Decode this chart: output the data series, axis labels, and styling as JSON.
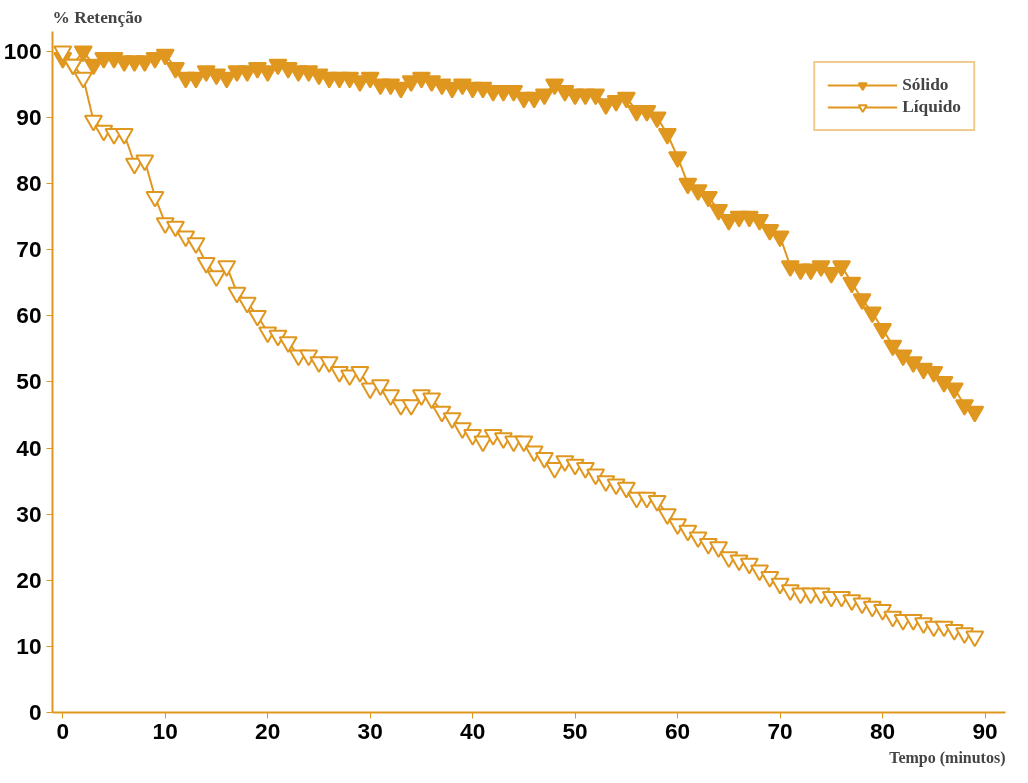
{
  "chart_data": {
    "type": "line",
    "xlabel": "Tempo (minutos)",
    "ylabel": "% Retenção",
    "x": [
      0,
      1,
      2,
      3,
      4,
      5,
      6,
      7,
      8,
      9,
      10,
      11,
      12,
      13,
      14,
      15,
      16,
      17,
      18,
      19,
      20,
      21,
      22,
      23,
      24,
      25,
      26,
      27,
      28,
      29,
      30,
      31,
      32,
      33,
      34,
      35,
      36,
      37,
      38,
      39,
      40,
      41,
      42,
      43,
      44,
      45,
      46,
      47,
      48,
      49,
      50,
      51,
      52,
      53,
      54,
      55,
      56,
      57,
      58,
      59,
      60,
      61,
      62,
      63,
      64,
      65,
      66,
      67,
      68,
      69,
      70,
      71,
      72,
      73,
      74,
      75,
      76,
      77,
      78,
      79,
      80,
      81,
      82,
      83,
      84,
      85,
      86,
      87,
      88,
      89
    ],
    "series": [
      {
        "name": "Sólido",
        "color": "#e0971f",
        "values": [
          99,
          98,
          100,
          98,
          99,
          99,
          98.5,
          98.5,
          98.5,
          99,
          99.5,
          97.5,
          96,
          96,
          97,
          96.5,
          96,
          97,
          97,
          97.5,
          97,
          98,
          97.5,
          97,
          97,
          96.5,
          96,
          96,
          96,
          95.5,
          96,
          95,
          95,
          94.5,
          95.5,
          96,
          95.5,
          95,
          94.5,
          95,
          94.5,
          94.5,
          94,
          94,
          94,
          93,
          93,
          93.5,
          95,
          94,
          93.5,
          93.5,
          93.5,
          92,
          92.5,
          93,
          91,
          91,
          90,
          87.5,
          84,
          80,
          79,
          78,
          76,
          74.5,
          75,
          75,
          74.5,
          73,
          72,
          67.5,
          67,
          67,
          67.5,
          66.5,
          67.5,
          65,
          62.5,
          60.5,
          58,
          55.5,
          54,
          53,
          52,
          51.5,
          50,
          49,
          46.5,
          45.5
        ]
      },
      {
        "name": "Líquido",
        "color": "#e0971f",
        "values": [
          100,
          98,
          96,
          89.5,
          88,
          87.5,
          87.5,
          83,
          83.5,
          78,
          74,
          73.5,
          72,
          71,
          68,
          66,
          67.5,
          63.5,
          62,
          60,
          57.5,
          57,
          56,
          54,
          54,
          53,
          53,
          51.5,
          51,
          51.5,
          49,
          49.5,
          48,
          46.5,
          46.5,
          48,
          47.5,
          45.5,
          44.5,
          43,
          42,
          41,
          42,
          41.5,
          41,
          41,
          39.5,
          38.5,
          37,
          38,
          37.5,
          37,
          36,
          35,
          34.5,
          34,
          32.5,
          32.5,
          32,
          30,
          28.5,
          27.5,
          26.5,
          25.5,
          25,
          23.5,
          23,
          22.5,
          21.5,
          20.5,
          19.5,
          18.5,
          18,
          18,
          18,
          17.5,
          17.5,
          17,
          16.5,
          16,
          15.5,
          14.5,
          14,
          14,
          13.5,
          13,
          13,
          12.5,
          12,
          11.5
        ]
      }
    ],
    "xlim": [
      -1,
      92
    ],
    "ylim": [
      0,
      103
    ],
    "xticks": [
      0,
      10,
      20,
      30,
      40,
      50,
      60,
      70,
      80,
      90
    ],
    "yticks": [
      0,
      10,
      20,
      30,
      40,
      50,
      60,
      70,
      80,
      90,
      100
    ],
    "grid": false,
    "legend": "top right",
    "marker": "triangle",
    "line_style": "solid"
  }
}
